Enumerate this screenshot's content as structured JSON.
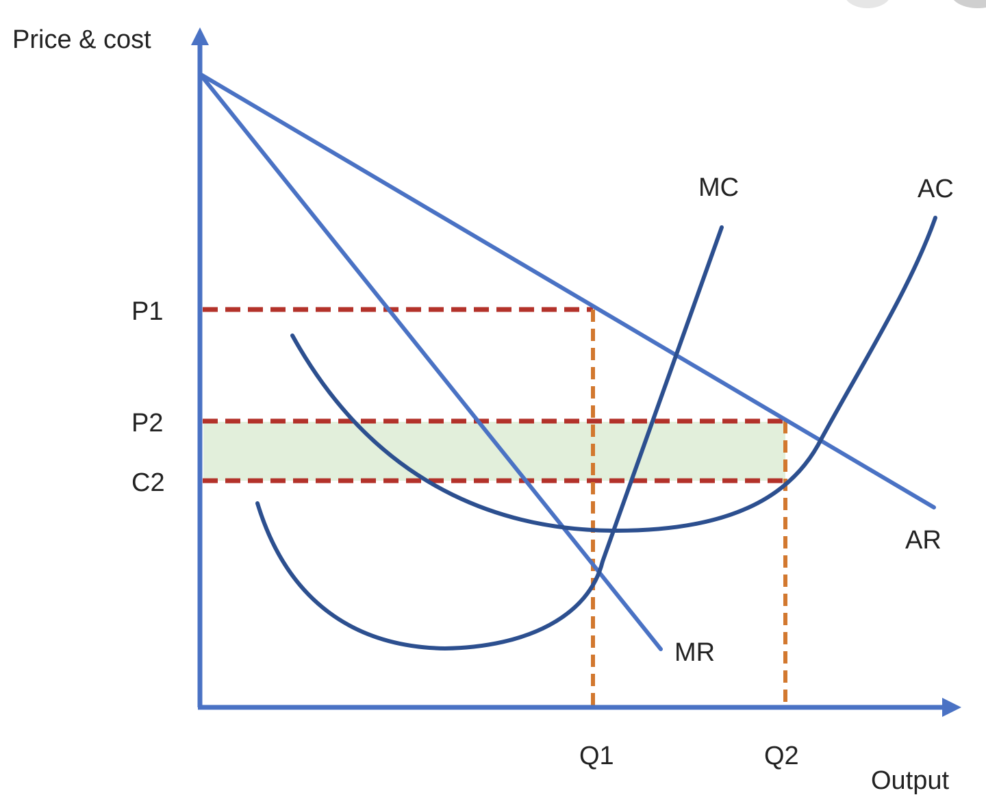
{
  "axes": {
    "y_label": "Price & cost",
    "x_label": "Output"
  },
  "price_labels": {
    "p1": "P1",
    "p2": "P2",
    "c2": "C2"
  },
  "quantity_labels": {
    "q1": "Q1",
    "q2": "Q2"
  },
  "curve_labels": {
    "mc": "MC",
    "ac": "AC",
    "ar": "AR",
    "mr": "MR"
  },
  "colors": {
    "axis": "#4a72c4",
    "demand_lines": "#4a72c4",
    "cost_curves": "#2c4f8f",
    "price_dashes": "#b3322a",
    "quantity_dashes": "#d2782f",
    "profit_area": "#e2efdb"
  }
}
